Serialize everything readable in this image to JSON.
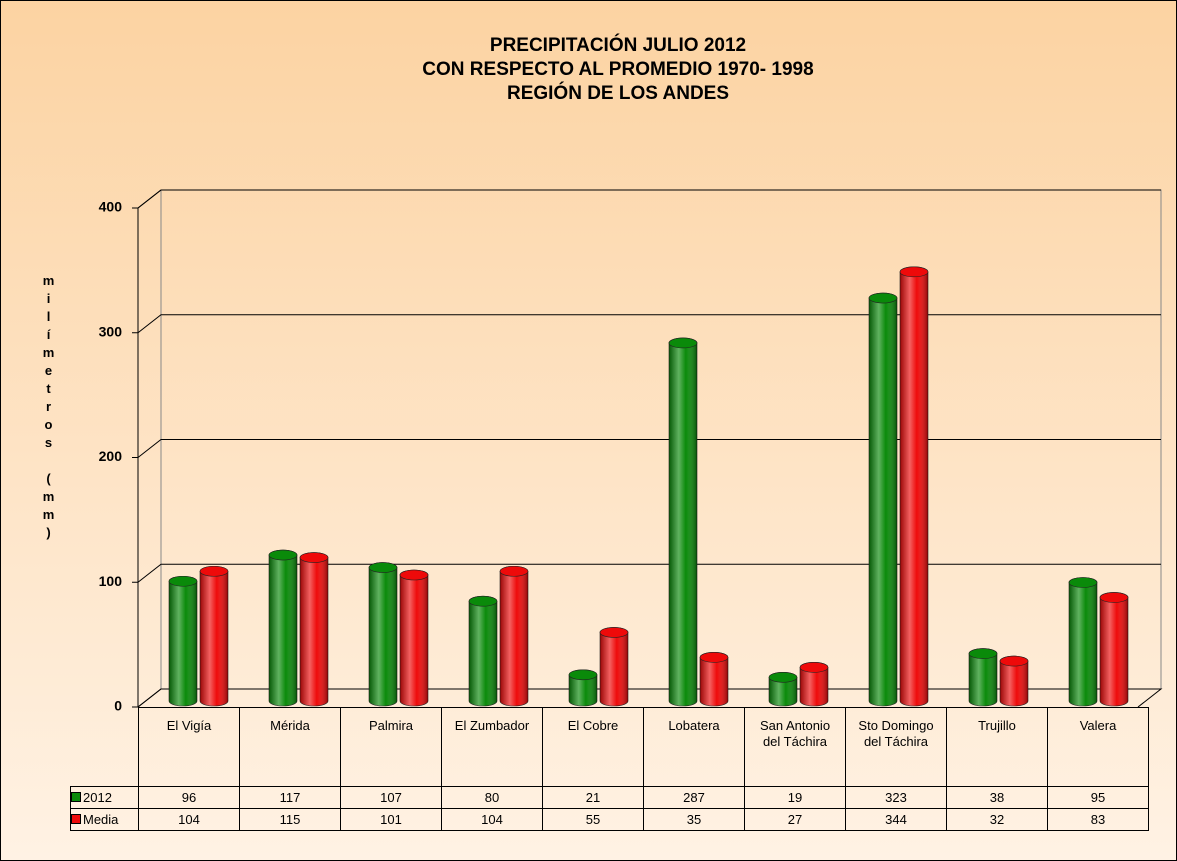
{
  "chart_data": {
    "type": "bar3d",
    "title_lines": [
      "PRECIPITACIÓN JULIO 2012",
      "CON RESPECTO AL PROMEDIO 1970- 1998",
      "REGIÓN DE LOS ANDES"
    ],
    "y_label": "milímetros (mm)",
    "categories": [
      "El Vigía",
      "Mérida",
      "Palmira",
      "El Zumbador",
      "El Cobre",
      "Lobatera",
      "San Antonio del Táchira",
      "Sto Domingo del Táchira",
      "Trujillo",
      "Valera"
    ],
    "series": [
      {
        "name": "2012",
        "color": "#0a8a0a",
        "values": [
          96,
          117,
          107,
          80,
          21,
          287,
          19,
          323,
          38,
          95
        ]
      },
      {
        "name": "Media",
        "color": "#ee0a0a",
        "values": [
          104,
          115,
          101,
          104,
          55,
          35,
          27,
          344,
          32,
          83
        ]
      }
    ],
    "ylim": [
      0,
      400
    ],
    "yticks": [
      0,
      100,
      200,
      300,
      400
    ],
    "grid": true
  }
}
